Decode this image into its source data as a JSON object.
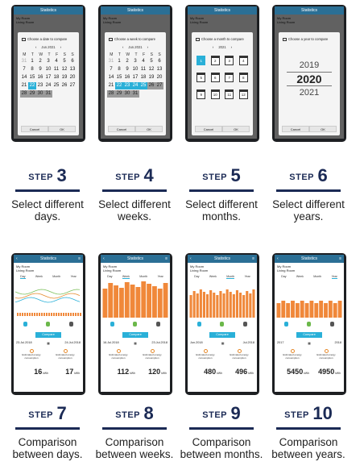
{
  "app": {
    "title": "Statistics",
    "location_line1": "My Room",
    "location_line2": "Living Room"
  },
  "pickers": [
    {
      "title": "Choose a date to compare",
      "nav": "Jun.2021",
      "cancel": "Cancel",
      "ok": "OK",
      "dow": [
        "M",
        "T",
        "W",
        "T",
        "F",
        "S",
        "S"
      ],
      "days": [
        "31",
        "1",
        "2",
        "3",
        "4",
        "5",
        "6",
        "7",
        "8",
        "9",
        "10",
        "11",
        "12",
        "13",
        "14",
        "15",
        "16",
        "17",
        "18",
        "19",
        "20",
        "21",
        "22",
        "23",
        "24",
        "25",
        "26",
        "27",
        "28",
        "29",
        "30",
        "31"
      ]
    },
    {
      "title": "Choose a week to compare",
      "nav": "Jun.2021",
      "cancel": "Cancel",
      "ok": "OK"
    },
    {
      "title": "Choose a month to compare",
      "nav": "2021",
      "cancel": "Cancel",
      "ok": "OK",
      "months": [
        "1",
        "2",
        "3",
        "4",
        "5",
        "6",
        "7",
        "8",
        "9",
        "10",
        "11",
        "12"
      ]
    },
    {
      "title": "Choose a year to compare",
      "cancel": "Cancel",
      "ok": "OK",
      "years": [
        "2019",
        "2020",
        "2021"
      ]
    }
  ],
  "tabs": [
    "Day",
    "Week",
    "Month",
    "Year"
  ],
  "compare_label": "Compare",
  "est_label": "Estimated energy consumption",
  "unit": "kWh",
  "comparisons": [
    {
      "date_a": "23.Jul.2018",
      "date_b": "24.Jul.2018",
      "value_a": "16",
      "value_b": "17"
    },
    {
      "date_a": "16.Jul.2018",
      "date_b": "23.Jul.2018",
      "value_a": "112",
      "value_b": "120"
    },
    {
      "date_a": "Jun.2018",
      "date_b": "Jul.2018",
      "value_a": "480",
      "value_b": "496"
    },
    {
      "date_a": "2017",
      "date_b": "2018",
      "value_a": "5450",
      "value_b": "4950"
    }
  ],
  "steps_label": "STEP",
  "steps": [
    {
      "num": "3",
      "desc": "Select different days."
    },
    {
      "num": "4",
      "desc": "Select different weeks."
    },
    {
      "num": "5",
      "desc": "Select different months."
    },
    {
      "num": "6",
      "desc": "Select different years."
    },
    {
      "num": "7",
      "desc": "Comparison between days."
    },
    {
      "num": "8",
      "desc": "Comparison between weeks."
    },
    {
      "num": "9",
      "desc": "Comparison between months."
    },
    {
      "num": "10",
      "desc": "Comparison between years."
    }
  ],
  "colors": {
    "title_bar": "#2b6f95",
    "accent": "#2ab0d8",
    "bars": "#f0883a",
    "step_text": "#1b2a55"
  }
}
